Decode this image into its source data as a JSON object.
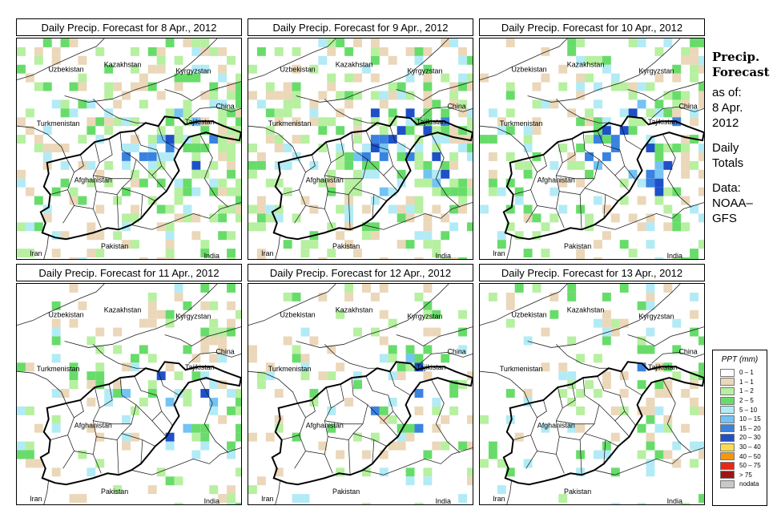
{
  "panels": [
    {
      "title": "Daily Precip. Forecast for  8 Apr., 2012",
      "seed": 11,
      "intensity": 0.62,
      "core": 0.55
    },
    {
      "title": "Daily Precip. Forecast for  9 Apr., 2012",
      "seed": 23,
      "intensity": 0.6,
      "core": 0.8
    },
    {
      "title": "Daily Precip. Forecast for  10 Apr., 2012",
      "seed": 37,
      "intensity": 0.5,
      "core": 0.9
    },
    {
      "title": "Daily Precip. Forecast for  11 Apr., 2012",
      "seed": 41,
      "intensity": 0.35,
      "core": 0.55
    },
    {
      "title": "Daily Precip. Forecast for  12 Apr., 2012",
      "seed": 53,
      "intensity": 0.28,
      "core": 0.2
    },
    {
      "title": "Daily Precip. Forecast for  13 Apr., 2012",
      "seed": 67,
      "intensity": 0.25,
      "core": 0.1
    }
  ],
  "countries": [
    "Kazakhstan",
    "Kyrgyzstan",
    "Uzbekistan",
    "China",
    "Tajikistan",
    "Turkmenistan",
    "Afghanistan",
    "Pakistan",
    "Iran",
    "India"
  ],
  "side": {
    "title_line1": "Precip.",
    "title_line2": "Forecast",
    "asof_line1": "as of:",
    "asof_line2": "8 Apr.",
    "asof_line3": "2012",
    "totals_line1": "Daily",
    "totals_line2": "Totals",
    "data_line1": "Data:",
    "data_line2": "NOAA–",
    "data_line3": "GFS"
  },
  "legend": {
    "title": "PPT (mm)",
    "items": [
      {
        "label": "0 – 1",
        "color": "#ffffff"
      },
      {
        "label": "1 – 1",
        "color": "#ebd7b9"
      },
      {
        "label": "1 – 2",
        "color": "#b6f0a0"
      },
      {
        "label": "2 – 5",
        "color": "#68dc6a"
      },
      {
        "label": "5 – 10",
        "color": "#b2ebf5"
      },
      {
        "label": "10 – 15",
        "color": "#73c3f3"
      },
      {
        "label": "15 – 20",
        "color": "#3a82e0"
      },
      {
        "label": "20 – 30",
        "color": "#1e50c8"
      },
      {
        "label": "30 – 40",
        "color": "#fadc50"
      },
      {
        "label": "40 – 50",
        "color": "#f5960f"
      },
      {
        "label": "50 – 75",
        "color": "#e62814"
      },
      {
        "label": "> 75",
        "color": "#a01414"
      },
      {
        "label": "nodata",
        "color": "#c8c8c8"
      }
    ]
  }
}
